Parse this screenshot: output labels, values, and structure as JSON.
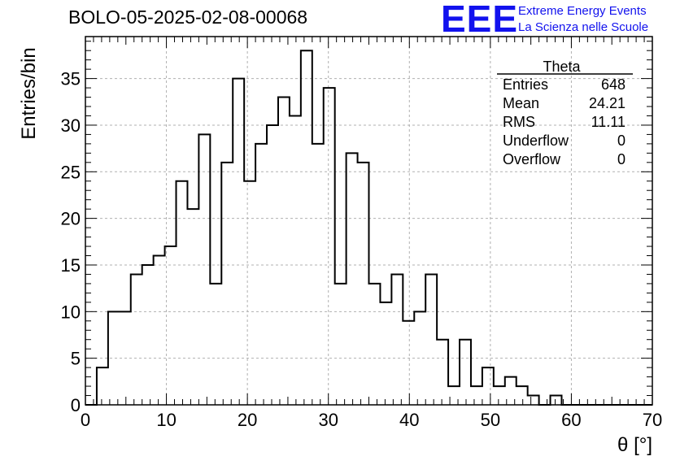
{
  "page": {
    "title": "BOLO-05-2025-02-08-00068",
    "logo": {
      "mark": "EEE",
      "line1": "Extreme Energy Events",
      "line2": "La Scienza nelle Scuole",
      "color": "#1212ee"
    }
  },
  "chart_data": {
    "type": "bar",
    "histogram": true,
    "xlabel": "θ [°]",
    "ylabel": "Entries/bin",
    "xlim": [
      0,
      70
    ],
    "ylim": [
      0,
      39.5
    ],
    "grid": true,
    "x_ticks": [
      0,
      10,
      20,
      30,
      40,
      50,
      60,
      70
    ],
    "y_ticks": [
      0,
      5,
      10,
      15,
      20,
      25,
      30,
      35
    ],
    "bin_edges": [
      0,
      1.4,
      2.8,
      4.2,
      5.6,
      7.0,
      8.4,
      9.8,
      11.2,
      12.6,
      14.0,
      15.4,
      16.8,
      18.2,
      19.6,
      21.0,
      22.4,
      23.8,
      25.2,
      26.6,
      28.0,
      29.4,
      30.8,
      32.2,
      33.6,
      35.0,
      36.4,
      37.8,
      39.2,
      40.6,
      42.0,
      43.4,
      44.8,
      46.2,
      47.6,
      49.0,
      50.4,
      51.8,
      53.2,
      54.6,
      56.0,
      57.4,
      58.8,
      60.2,
      61.6,
      63.0,
      64.4,
      65.8,
      67.2,
      68.6,
      70.0
    ],
    "values": [
      0,
      4,
      10,
      10,
      14,
      15,
      16,
      17,
      24,
      21,
      29,
      13,
      26,
      35,
      24,
      28,
      30,
      33,
      31,
      38,
      28,
      34,
      13,
      27,
      26,
      13,
      11,
      14,
      9,
      10,
      14,
      7,
      2,
      7,
      2,
      4,
      2,
      3,
      2,
      1,
      0,
      1,
      0,
      0,
      0,
      0,
      0,
      0,
      0,
      0
    ],
    "line_color": "#000000",
    "stats_box": {
      "title": "Theta",
      "rows": [
        {
          "label": "Entries",
          "value": "648"
        },
        {
          "label": "Mean",
          "value": "24.21"
        },
        {
          "label": "RMS",
          "value": "11.11"
        },
        {
          "label": "Underflow",
          "value": "0"
        },
        {
          "label": "Overflow",
          "value": "0"
        }
      ]
    }
  }
}
